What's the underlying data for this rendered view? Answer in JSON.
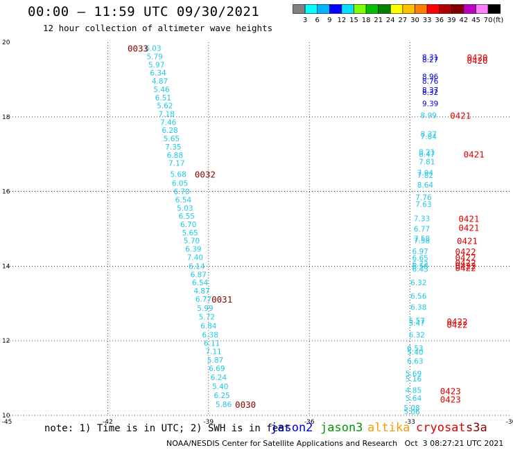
{
  "title": "00:00 — 11:59 UTC 09/30/2021",
  "subtitle": "12 hour collection of altimeter wave heights",
  "colorbar": {
    "unit": "(ft)",
    "bins": [
      {
        "label": "",
        "color": "#808080"
      },
      {
        "label": "3",
        "color": "#00ffff"
      },
      {
        "label": "6",
        "color": "#00b4ff"
      },
      {
        "label": "9",
        "color": "#0000ff"
      },
      {
        "label": "12",
        "color": "#00e0ff"
      },
      {
        "label": "15",
        "color": "#7fff00"
      },
      {
        "label": "18",
        "color": "#00c000"
      },
      {
        "label": "21",
        "color": "#008000"
      },
      {
        "label": "24",
        "color": "#ffff00"
      },
      {
        "label": "27",
        "color": "#ffc000"
      },
      {
        "label": "30",
        "color": "#ff8000"
      },
      {
        "label": "33",
        "color": "#ff0000"
      },
      {
        "label": "36",
        "color": "#b00000"
      },
      {
        "label": "39",
        "color": "#800000"
      },
      {
        "label": "42",
        "color": "#c000c0"
      },
      {
        "label": "45",
        "color": "#ff80ff"
      },
      {
        "label": "70",
        "color": "#000000"
      }
    ]
  },
  "note": "note: 1) Time is in UTC; 2) SWH is in feet",
  "satellites": [
    {
      "name": "jason2",
      "color": "#0000dd"
    },
    {
      "name": "jason3",
      "color": "#009900"
    },
    {
      "name": "altika",
      "color": "#ff9900"
    },
    {
      "name": "cryosat",
      "color": "#dd0000"
    },
    {
      "name": "s3a",
      "color": "#8b0000"
    }
  ],
  "footer": "NOAA/NESDIS Center for Satellite Applications and Research   Oct  3 08:27:21 UTC 2021",
  "chart_data": {
    "type": "scatter",
    "xlim": [
      -45,
      -30
    ],
    "ylim": [
      10,
      20
    ],
    "x_ticks": [
      "-45",
      "-42",
      "-39",
      "-36",
      "-33",
      "-30"
    ],
    "y_ticks": [
      "10",
      "12",
      "14",
      "16",
      "18",
      "20"
    ],
    "grid": true,
    "colors": {
      "light_blue": "#1ec8e6",
      "blue": "#0000dd",
      "red": "#dd0000",
      "dark_red": "#8b0000"
    },
    "track_points": [
      {
        "x": -40.65,
        "y": 19.84,
        "label": "6.03",
        "color": "light_blue"
      },
      {
        "x": -40.6,
        "y": 19.62,
        "label": "5.79",
        "color": "light_blue"
      },
      {
        "x": -40.55,
        "y": 19.4,
        "label": "5.97",
        "color": "light_blue"
      },
      {
        "x": -40.5,
        "y": 19.18,
        "label": "6.34",
        "color": "light_blue"
      },
      {
        "x": -40.45,
        "y": 18.96,
        "label": "4.87",
        "color": "light_blue"
      },
      {
        "x": -40.4,
        "y": 18.74,
        "label": "5.46",
        "color": "light_blue"
      },
      {
        "x": -40.35,
        "y": 18.52,
        "label": "6.51",
        "color": "light_blue"
      },
      {
        "x": -40.3,
        "y": 18.3,
        "label": "5.62",
        "color": "light_blue"
      },
      {
        "x": -40.25,
        "y": 18.08,
        "label": "7.18",
        "color": "light_blue"
      },
      {
        "x": -40.2,
        "y": 17.86,
        "label": "7.46",
        "color": "light_blue"
      },
      {
        "x": -40.15,
        "y": 17.64,
        "label": "6.28",
        "color": "light_blue"
      },
      {
        "x": -40.1,
        "y": 17.42,
        "label": "5.65",
        "color": "light_blue"
      },
      {
        "x": -40.05,
        "y": 17.2,
        "label": "7.35",
        "color": "light_blue"
      },
      {
        "x": -40.0,
        "y": 16.98,
        "label": "6.88",
        "color": "light_blue"
      },
      {
        "x": -39.95,
        "y": 16.76,
        "label": "7.17",
        "color": "light_blue"
      },
      {
        "x": -39.9,
        "y": 16.47,
        "label": "5.68",
        "color": "light_blue"
      },
      {
        "x": -39.85,
        "y": 16.22,
        "label": "6.05",
        "color": "light_blue"
      },
      {
        "x": -39.8,
        "y": 16.0,
        "label": "6.70",
        "color": "light_blue"
      },
      {
        "x": -39.75,
        "y": 15.78,
        "label": "6.54",
        "color": "light_blue"
      },
      {
        "x": -39.7,
        "y": 15.56,
        "label": "5.03",
        "color": "light_blue"
      },
      {
        "x": -39.65,
        "y": 15.34,
        "label": "6.55",
        "color": "light_blue"
      },
      {
        "x": -39.6,
        "y": 15.12,
        "label": "6.70",
        "color": "light_blue"
      },
      {
        "x": -39.55,
        "y": 14.9,
        "label": "5.65",
        "color": "light_blue"
      },
      {
        "x": -39.5,
        "y": 14.68,
        "label": "5.70",
        "color": "light_blue"
      },
      {
        "x": -39.45,
        "y": 14.46,
        "label": "6.39",
        "color": "light_blue"
      },
      {
        "x": -39.4,
        "y": 14.24,
        "label": "7.40",
        "color": "light_blue"
      },
      {
        "x": -39.35,
        "y": 14.0,
        "label": "6.14",
        "color": "light_blue"
      },
      {
        "x": -39.3,
        "y": 13.78,
        "label": "6.87",
        "color": "light_blue"
      },
      {
        "x": -39.25,
        "y": 13.56,
        "label": "6.54",
        "color": "light_blue"
      },
      {
        "x": -39.2,
        "y": 13.34,
        "label": "4.87",
        "color": "light_blue"
      },
      {
        "x": -39.15,
        "y": 13.12,
        "label": "6.77",
        "color": "light_blue"
      },
      {
        "x": -39.1,
        "y": 12.88,
        "label": "5.99",
        "color": "light_blue"
      },
      {
        "x": -39.05,
        "y": 12.64,
        "label": "5.72",
        "color": "light_blue"
      },
      {
        "x": -39.0,
        "y": 12.4,
        "label": "6.84",
        "color": "light_blue"
      },
      {
        "x": -38.95,
        "y": 12.16,
        "label": "6.38",
        "color": "light_blue"
      },
      {
        "x": -38.9,
        "y": 11.94,
        "label": "6.11",
        "color": "light_blue"
      },
      {
        "x": -38.85,
        "y": 11.72,
        "label": "7.11",
        "color": "light_blue"
      },
      {
        "x": -38.8,
        "y": 11.48,
        "label": "5.87",
        "color": "light_blue"
      },
      {
        "x": -38.75,
        "y": 11.26,
        "label": "6.69",
        "color": "light_blue"
      },
      {
        "x": -38.7,
        "y": 11.02,
        "label": "6.24",
        "color": "light_blue"
      },
      {
        "x": -38.65,
        "y": 10.78,
        "label": "5.40",
        "color": "light_blue"
      },
      {
        "x": -38.6,
        "y": 10.54,
        "label": "6.25",
        "color": "light_blue"
      },
      {
        "x": -38.55,
        "y": 10.3,
        "label": "5.86",
        "color": "light_blue"
      },
      {
        "x": -32.4,
        "y": 19.6,
        "label": "8.31",
        "color": "blue"
      },
      {
        "x": -32.4,
        "y": 19.54,
        "label": "8.27",
        "color": "blue"
      },
      {
        "x": -32.4,
        "y": 19.08,
        "label": "8.96",
        "color": "blue"
      },
      {
        "x": -32.4,
        "y": 18.96,
        "label": "8.76",
        "color": "blue"
      },
      {
        "x": -32.4,
        "y": 18.72,
        "label": "8.37",
        "color": "blue"
      },
      {
        "x": -32.4,
        "y": 18.66,
        "label": "8.32",
        "color": "blue"
      },
      {
        "x": -32.4,
        "y": 18.36,
        "label": "9.39",
        "color": "blue"
      },
      {
        "x": -32.45,
        "y": 18.04,
        "label": "8.99",
        "color": "light_blue"
      },
      {
        "x": -32.45,
        "y": 17.54,
        "label": "8.37",
        "color": "light_blue"
      },
      {
        "x": -32.45,
        "y": 17.48,
        "label": "7.84",
        "color": "light_blue"
      },
      {
        "x": -32.5,
        "y": 17.06,
        "label": "8.21",
        "color": "light_blue"
      },
      {
        "x": -32.5,
        "y": 17.0,
        "label": "8.47",
        "color": "light_blue"
      },
      {
        "x": -32.5,
        "y": 16.8,
        "label": "7.81",
        "color": "light_blue"
      },
      {
        "x": -32.55,
        "y": 16.5,
        "label": "7.94",
        "color": "light_blue"
      },
      {
        "x": -32.55,
        "y": 16.44,
        "label": "7.82",
        "color": "light_blue"
      },
      {
        "x": -32.55,
        "y": 16.18,
        "label": "8.64",
        "color": "light_blue"
      },
      {
        "x": -32.6,
        "y": 15.84,
        "label": "7.76",
        "color": "light_blue"
      },
      {
        "x": -32.6,
        "y": 15.66,
        "label": "7.63",
        "color": "light_blue"
      },
      {
        "x": -32.65,
        "y": 15.28,
        "label": "7.33",
        "color": "light_blue"
      },
      {
        "x": -32.65,
        "y": 15.0,
        "label": "6.77",
        "color": "light_blue"
      },
      {
        "x": -32.65,
        "y": 14.74,
        "label": "7.58",
        "color": "light_blue"
      },
      {
        "x": -32.65,
        "y": 14.68,
        "label": "7.58",
        "color": "light_blue"
      },
      {
        "x": -32.7,
        "y": 14.4,
        "label": "6.97",
        "color": "light_blue"
      },
      {
        "x": -32.7,
        "y": 14.22,
        "label": "6.65",
        "color": "light_blue"
      },
      {
        "x": -32.7,
        "y": 14.06,
        "label": "6.72",
        "color": "light_blue"
      },
      {
        "x": -32.7,
        "y": 14.0,
        "label": "6.58",
        "color": "light_blue"
      },
      {
        "x": -32.7,
        "y": 13.92,
        "label": "6.43",
        "color": "light_blue"
      },
      {
        "x": -32.75,
        "y": 13.56,
        "label": "6.32",
        "color": "light_blue"
      },
      {
        "x": -32.75,
        "y": 13.2,
        "label": "6.56",
        "color": "light_blue"
      },
      {
        "x": -32.75,
        "y": 12.9,
        "label": "6.38",
        "color": "light_blue"
      },
      {
        "x": -32.8,
        "y": 12.54,
        "label": "5.57",
        "color": "light_blue"
      },
      {
        "x": -32.8,
        "y": 12.48,
        "label": "5.47",
        "color": "light_blue"
      },
      {
        "x": -32.8,
        "y": 12.16,
        "label": "6.32",
        "color": "light_blue"
      },
      {
        "x": -32.85,
        "y": 11.8,
        "label": "6.53",
        "color": "light_blue"
      },
      {
        "x": -32.85,
        "y": 11.7,
        "label": "5.40",
        "color": "light_blue"
      },
      {
        "x": -32.85,
        "y": 11.46,
        "label": "6.63",
        "color": "light_blue"
      },
      {
        "x": -32.9,
        "y": 11.12,
        "label": "5.69",
        "color": "light_blue"
      },
      {
        "x": -32.9,
        "y": 10.98,
        "label": "5.16",
        "color": "light_blue"
      },
      {
        "x": -32.9,
        "y": 10.68,
        "label": "4.85",
        "color": "light_blue"
      },
      {
        "x": -32.9,
        "y": 10.46,
        "label": "5.64",
        "color": "light_blue"
      },
      {
        "x": -32.95,
        "y": 10.2,
        "label": "5.08",
        "color": "light_blue"
      },
      {
        "x": -32.95,
        "y": 10.1,
        "label": "5.06",
        "color": "light_blue"
      }
    ],
    "time_labels": [
      {
        "x": -41.1,
        "y": 19.84,
        "label": "0033",
        "color": "dark_red"
      },
      {
        "x": -39.1,
        "y": 16.47,
        "label": "0032",
        "color": "dark_red"
      },
      {
        "x": -38.6,
        "y": 13.12,
        "label": "0031",
        "color": "dark_red"
      },
      {
        "x": -37.9,
        "y": 10.3,
        "label": "0030",
        "color": "dark_red"
      },
      {
        "x": -31.0,
        "y": 19.6,
        "label": "0420",
        "color": "red"
      },
      {
        "x": -31.0,
        "y": 19.52,
        "label": "0420",
        "color": "red"
      },
      {
        "x": -31.5,
        "y": 18.04,
        "label": "0421",
        "color": "red"
      },
      {
        "x": -31.1,
        "y": 17.0,
        "label": "0421",
        "color": "red"
      },
      {
        "x": -31.25,
        "y": 15.28,
        "label": "0421",
        "color": "red"
      },
      {
        "x": -31.25,
        "y": 15.04,
        "label": "0421",
        "color": "red"
      },
      {
        "x": -31.3,
        "y": 14.68,
        "label": "0421",
        "color": "red"
      },
      {
        "x": -31.35,
        "y": 14.4,
        "label": "0422",
        "color": "red"
      },
      {
        "x": -31.35,
        "y": 14.24,
        "label": "0422",
        "color": "red"
      },
      {
        "x": -31.35,
        "y": 14.1,
        "label": "0422",
        "color": "red"
      },
      {
        "x": -31.35,
        "y": 14.02,
        "label": "0422",
        "color": "red"
      },
      {
        "x": -31.35,
        "y": 13.96,
        "label": "0422",
        "color": "red"
      },
      {
        "x": -31.6,
        "y": 12.52,
        "label": "0422",
        "color": "red"
      },
      {
        "x": -31.6,
        "y": 12.44,
        "label": "0422",
        "color": "red"
      },
      {
        "x": -31.8,
        "y": 10.66,
        "label": "0423",
        "color": "red"
      },
      {
        "x": -31.8,
        "y": 10.44,
        "label": "0423",
        "color": "red"
      }
    ]
  }
}
